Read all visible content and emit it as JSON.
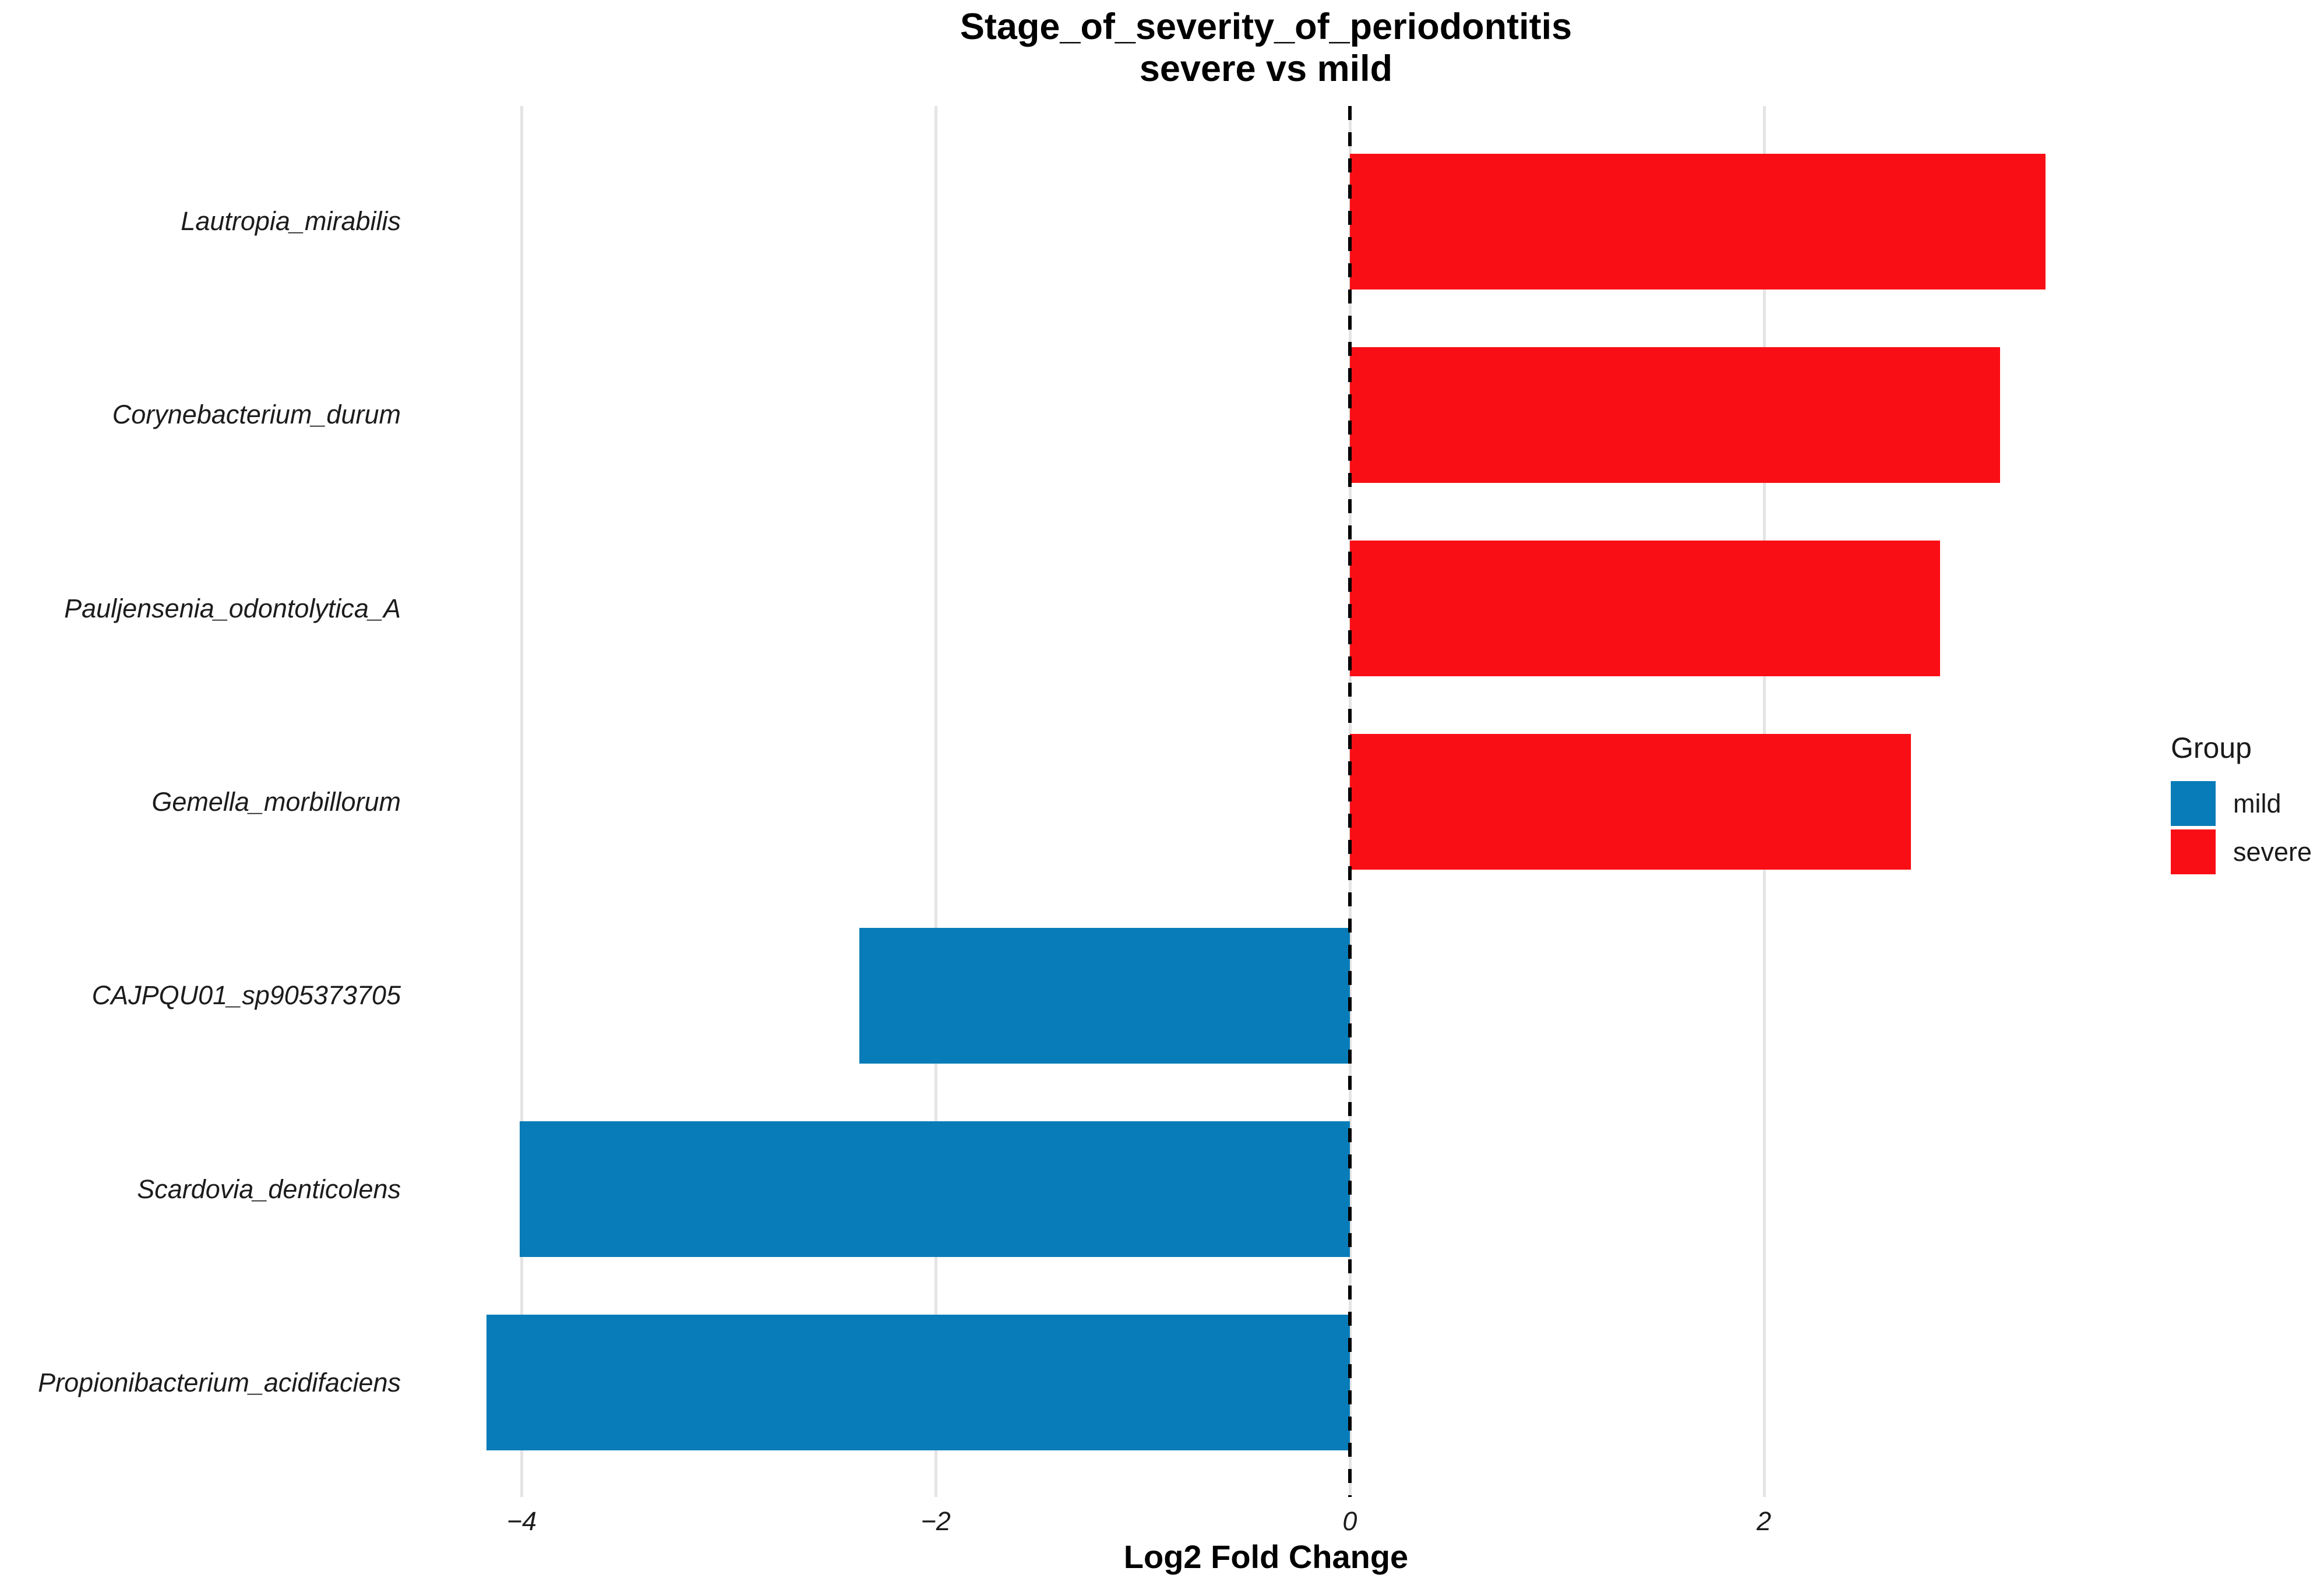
{
  "title": {
    "line1": "Stage_of_severity_of_periodontitis",
    "line2": "severe vs mild"
  },
  "axes": {
    "x_label": "Log2 Fold Change",
    "x_ticks": [
      {
        "value": -4,
        "label": "−4"
      },
      {
        "value": -2,
        "label": "−2"
      },
      {
        "value": 0,
        "label": "0"
      },
      {
        "value": 2,
        "label": "2"
      }
    ]
  },
  "legend": {
    "title": "Group",
    "items": [
      {
        "label": "mild",
        "color": "#087cb8"
      },
      {
        "label": "severe",
        "color": "#fa0e15"
      }
    ]
  },
  "colors": {
    "background": "#ffffff",
    "gridline": "#e4e4e4",
    "zero_line": "#000000",
    "mild": "#087cb8",
    "severe": "#fa0e15"
  },
  "chart_data": {
    "type": "bar",
    "orientation": "horizontal",
    "title": "Stage_of_severity_of_periodontitis\nsevere vs mild",
    "xlabel": "Log2 Fold Change",
    "ylabel": "",
    "categories": [
      "Lautropia_mirabilis",
      "Corynebacterium_durum",
      "Pauljensenia_odontolytica_A",
      "Gemella_morbillorum",
      "CAJPQU01_sp905373705",
      "Scardovia_denticolens",
      "Propionibacterium_acidifaciens"
    ],
    "values": [
      3.36,
      3.14,
      2.85,
      2.71,
      -2.37,
      -4.01,
      -4.17
    ],
    "groups": [
      "severe",
      "severe",
      "severe",
      "severe",
      "mild",
      "mild",
      "mild"
    ],
    "xlim": [
      -4.55,
      3.74
    ],
    "grid": "vertical-major-only",
    "zero_reference_line": "black-dashed",
    "legend_position": "right-middle",
    "legend_title": "Group"
  }
}
